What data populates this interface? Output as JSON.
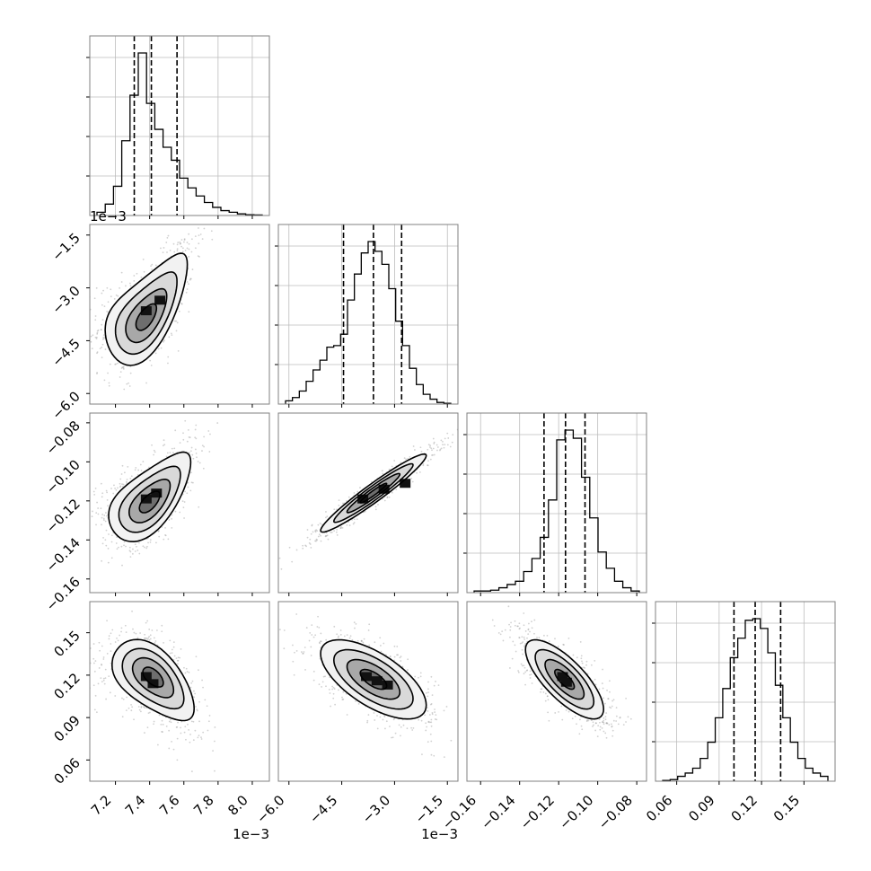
{
  "chart_data": {
    "type": "corner",
    "parameters": [
      {
        "id": "p0",
        "range": [
          0.00705,
          0.0081
        ],
        "ticks": [
          0.0072,
          0.0074,
          0.0076,
          0.0078,
          0.008
        ],
        "tick_labels": [
          "7.2",
          "7.4",
          "7.6",
          "7.8",
          "8.0"
        ],
        "offset_label": "1e−3",
        "quantiles": [
          0.00731,
          0.00741,
          0.00756
        ],
        "hist": [
          0.02,
          0.07,
          0.18,
          0.46,
          0.74,
          1.0,
          0.69,
          0.53,
          0.42,
          0.34,
          0.23,
          0.17,
          0.12,
          0.08,
          0.05,
          0.03,
          0.02,
          0.01,
          0.005,
          0.003
        ]
      },
      {
        "id": "p1",
        "range": [
          -0.0063,
          -0.0012
        ],
        "ticks": [
          -0.006,
          -0.0045,
          -0.003,
          -0.0015
        ],
        "tick_labels": [
          "−6.0",
          "−4.5",
          "−3.0",
          "−1.5"
        ],
        "offset_label": "1e−3",
        "quantiles": [
          -0.00445,
          -0.0036,
          -0.0028
        ],
        "hist": [
          0.02,
          0.04,
          0.08,
          0.14,
          0.21,
          0.27,
          0.35,
          0.36,
          0.43,
          0.64,
          0.8,
          0.93,
          1.0,
          0.94,
          0.86,
          0.71,
          0.51,
          0.36,
          0.22,
          0.12,
          0.06,
          0.03,
          0.01,
          0.005
        ]
      },
      {
        "id": "p2",
        "range": [
          -0.167,
          -0.075
        ],
        "ticks": [
          -0.16,
          -0.14,
          -0.12,
          -0.1,
          -0.08
        ],
        "tick_labels": [
          "−0.16",
          "−0.14",
          "−0.12",
          "−0.10",
          "−0.08"
        ],
        "offset_label": "",
        "quantiles": [
          -0.1275,
          -0.1165,
          -0.1065
        ],
        "hist": [
          0.01,
          0.01,
          0.015,
          0.03,
          0.05,
          0.07,
          0.13,
          0.21,
          0.34,
          0.57,
          0.94,
          1.0,
          0.95,
          0.71,
          0.46,
          0.25,
          0.15,
          0.07,
          0.03,
          0.01
        ]
      },
      {
        "id": "p3",
        "range": [
          0.045,
          0.172
        ],
        "ticks": [
          0.06,
          0.09,
          0.12,
          0.15
        ],
        "tick_labels": [
          "0.06",
          "0.09",
          "0.12",
          "0.15"
        ],
        "offset_label": "",
        "quantiles": [
          0.1005,
          0.1155,
          0.1335
        ],
        "hist": [
          0.005,
          0.01,
          0.03,
          0.05,
          0.08,
          0.14,
          0.24,
          0.39,
          0.57,
          0.76,
          0.88,
          0.99,
          1.0,
          0.94,
          0.79,
          0.59,
          0.39,
          0.24,
          0.14,
          0.08,
          0.05,
          0.03
        ]
      }
    ],
    "pairs": [
      {
        "row": 1,
        "col": 0,
        "center": [
          0.00738,
          -0.0037
        ],
        "rho": 0.62,
        "sigma": [
          0.00012,
          0.00075
        ],
        "bend": 0.55,
        "contours": [
          0.5,
          1.0,
          1.5,
          2.0
        ],
        "peak_cells": [
          [
            0.00738,
            -0.00365
          ],
          [
            0.00746,
            -0.00335
          ]
        ]
      },
      {
        "row": 2,
        "col": 0,
        "center": [
          0.0074,
          -0.119
        ],
        "rho": 0.62,
        "sigma": [
          0.00012,
          0.011
        ],
        "bend": 0.45,
        "contours": [
          0.5,
          1.0,
          1.5,
          2.0
        ],
        "peak_cells": [
          [
            0.00738,
            -0.119
          ],
          [
            0.00744,
            -0.116
          ]
        ]
      },
      {
        "row": 2,
        "col": 1,
        "center": [
          -0.0036,
          -0.116
        ],
        "rho": 0.96,
        "sigma": [
          0.00075,
          0.01
        ],
        "bend": 0,
        "contours": [
          0.5,
          1.0,
          1.5,
          2.0
        ],
        "peak_cells": [
          [
            -0.0039,
            -0.119
          ],
          [
            -0.0033,
            -0.114
          ],
          [
            -0.0027,
            -0.111
          ]
        ]
      },
      {
        "row": 3,
        "col": 0,
        "center": [
          0.00742,
          0.117
        ],
        "rho": -0.55,
        "sigma": [
          0.00012,
          0.014
        ],
        "bend": -0.35,
        "contours": [
          0.5,
          1.0,
          1.5,
          2.0
        ],
        "peak_cells": [
          [
            0.00738,
            0.119
          ],
          [
            0.00742,
            0.114
          ]
        ]
      },
      {
        "row": 3,
        "col": 1,
        "center": [
          -0.0036,
          0.117
        ],
        "rho": -0.65,
        "sigma": [
          0.00075,
          0.014
        ],
        "bend": 0,
        "contours": [
          0.5,
          1.0,
          1.5,
          2.0
        ],
        "peak_cells": [
          [
            -0.0038,
            0.119
          ],
          [
            -0.0035,
            0.116
          ],
          [
            -0.0032,
            0.113
          ]
        ]
      },
      {
        "row": 3,
        "col": 2,
        "center": [
          -0.117,
          0.117
        ],
        "rho": -0.75,
        "sigma": [
          0.01,
          0.014
        ],
        "bend": 0,
        "contours": [
          0.5,
          1.0,
          1.5,
          2.0
        ],
        "peak_cells": [
          [
            -0.118,
            0.119
          ],
          [
            -0.116,
            0.115
          ]
        ]
      }
    ],
    "grid": true,
    "xlabel": "",
    "ylabel": "",
    "title": ""
  }
}
